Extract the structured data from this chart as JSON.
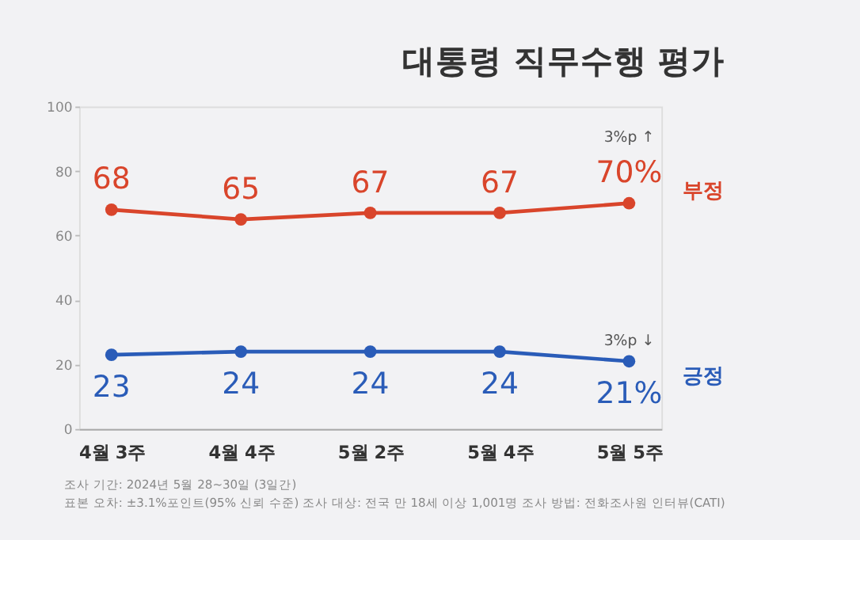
{
  "chart_data": {
    "type": "line",
    "title": "대통령 직무수행 평가",
    "categories": [
      "4월 3주",
      "4월 4주",
      "5월 2주",
      "5월 4주",
      "5월 5주"
    ],
    "series": [
      {
        "name": "부정",
        "color": "#d9452b",
        "values": [
          68,
          65,
          67,
          67,
          70
        ],
        "value_labels": [
          "68",
          "65",
          "67",
          "67",
          "70%"
        ]
      },
      {
        "name": "긍정",
        "color": "#2a5cb8",
        "values": [
          23,
          24,
          24,
          24,
          21
        ],
        "value_labels": [
          "23",
          "24",
          "24",
          "24",
          "21%"
        ]
      }
    ],
    "ylim": [
      0,
      100
    ],
    "yticks": [
      0,
      20,
      40,
      60,
      80,
      100
    ],
    "marker": "circle",
    "line_style": "solid",
    "grid": false,
    "annotations": [
      "3%p ↑",
      "3%p ↓",
      "조사 기간: 2024년 5월 28~30일 (3일간)",
      "표본 오차: ±3.1%포인트(95% 신뢰 수준)   조사 대상: 전국 만 18세 이상 1,001명   조사 방법: 전화조사원 인터뷰(CATI)"
    ]
  }
}
